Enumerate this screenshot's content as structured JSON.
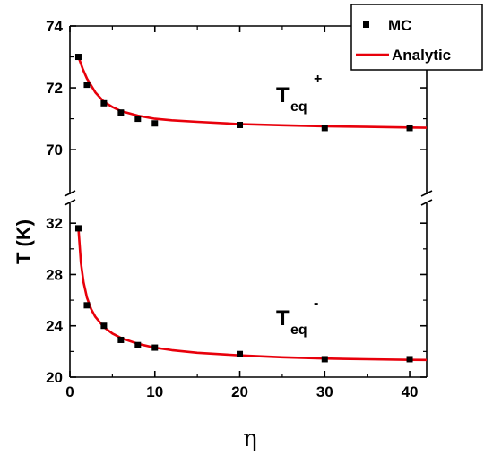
{
  "chart_data": {
    "type": "scatter",
    "broken_y_axis": true,
    "xlabel": "η",
    "ylabel": "T (K)",
    "xlim": [
      0,
      42
    ],
    "xticks": [
      0,
      10,
      20,
      30,
      40
    ],
    "panels": [
      {
        "position": "upper",
        "ylim": [
          68.7,
          74
        ],
        "yticks": [
          70,
          72,
          74
        ],
        "annotation": {
          "main": "T",
          "sub": "eq",
          "sup": "+"
        },
        "series": [
          {
            "name": "MC",
            "style": "square-markers",
            "x": [
              1,
              2,
              4,
              6,
              8,
              10,
              20,
              30,
              40
            ],
            "y": [
              73.0,
              72.1,
              71.5,
              71.2,
              71.0,
              70.85,
              70.8,
              70.7,
              70.7
            ]
          },
          {
            "name": "Analytic",
            "style": "red-line",
            "x": [
              1,
              1.5,
              2,
              3,
              4,
              5,
              6,
              8,
              10,
              12,
              15,
              20,
              25,
              30,
              35,
              40,
              42
            ],
            "y": [
              73.0,
              72.62,
              72.3,
              71.85,
              71.55,
              71.38,
              71.25,
              71.1,
              71.0,
              70.95,
              70.9,
              70.83,
              70.79,
              70.76,
              70.74,
              70.72,
              70.71
            ]
          }
        ]
      },
      {
        "position": "lower",
        "ylim": [
          20,
          33.2
        ],
        "yticks": [
          20,
          24,
          28,
          32
        ],
        "annotation": {
          "main": "T",
          "sub": "eq",
          "sup": "-"
        },
        "series": [
          {
            "name": "MC",
            "style": "square-markers",
            "x": [
              1,
              2,
              4,
              6,
              8,
              10,
              20,
              30,
              40
            ],
            "y": [
              31.6,
              25.6,
              24.0,
              22.9,
              22.5,
              22.3,
              21.8,
              21.4,
              21.4
            ]
          },
          {
            "name": "Analytic",
            "style": "red-line",
            "x": [
              1,
              1.3,
              1.6,
              2,
              2.5,
              3,
              4,
              5,
              6,
              8,
              10,
              12,
              15,
              20,
              25,
              30,
              35,
              40,
              42
            ],
            "y": [
              31.6,
              28.9,
              27.4,
              26.2,
              25.3,
              24.7,
              23.9,
              23.4,
              23.05,
              22.6,
              22.3,
              22.1,
              21.9,
              21.7,
              21.55,
              21.45,
              21.4,
              21.35,
              21.34
            ]
          }
        ]
      }
    ],
    "legend": {
      "placement": "top-right",
      "entries": [
        {
          "label": "MC",
          "symbol": "square",
          "color": "#000000"
        },
        {
          "label": "Analytic",
          "symbol": "line",
          "color": "#e8000b"
        }
      ]
    },
    "colors": {
      "marker": "#000000",
      "curve": "#e8000b",
      "axis": "#000000"
    }
  }
}
